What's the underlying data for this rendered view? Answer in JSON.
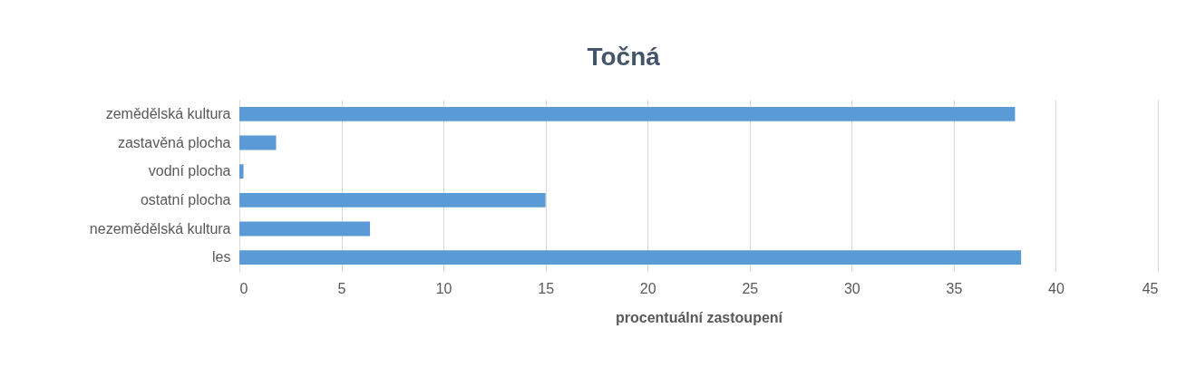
{
  "chart_data": {
    "type": "bar",
    "orientation": "horizontal",
    "title": "Točná",
    "xlabel": "procentuální zastoupení",
    "categories": [
      "zemědělská kultura",
      "zastavěná plocha",
      "vodní plocha",
      "ostatní plocha",
      "nezemědělská kultura",
      "les"
    ],
    "values": [
      38.0,
      1.8,
      0.2,
      15.0,
      6.4,
      38.3
    ],
    "color": "#5b9bd5",
    "xlim": [
      0,
      45
    ],
    "xticks": [
      0,
      5,
      10,
      15,
      20,
      25,
      30,
      35,
      40,
      45
    ],
    "grid": "x"
  }
}
